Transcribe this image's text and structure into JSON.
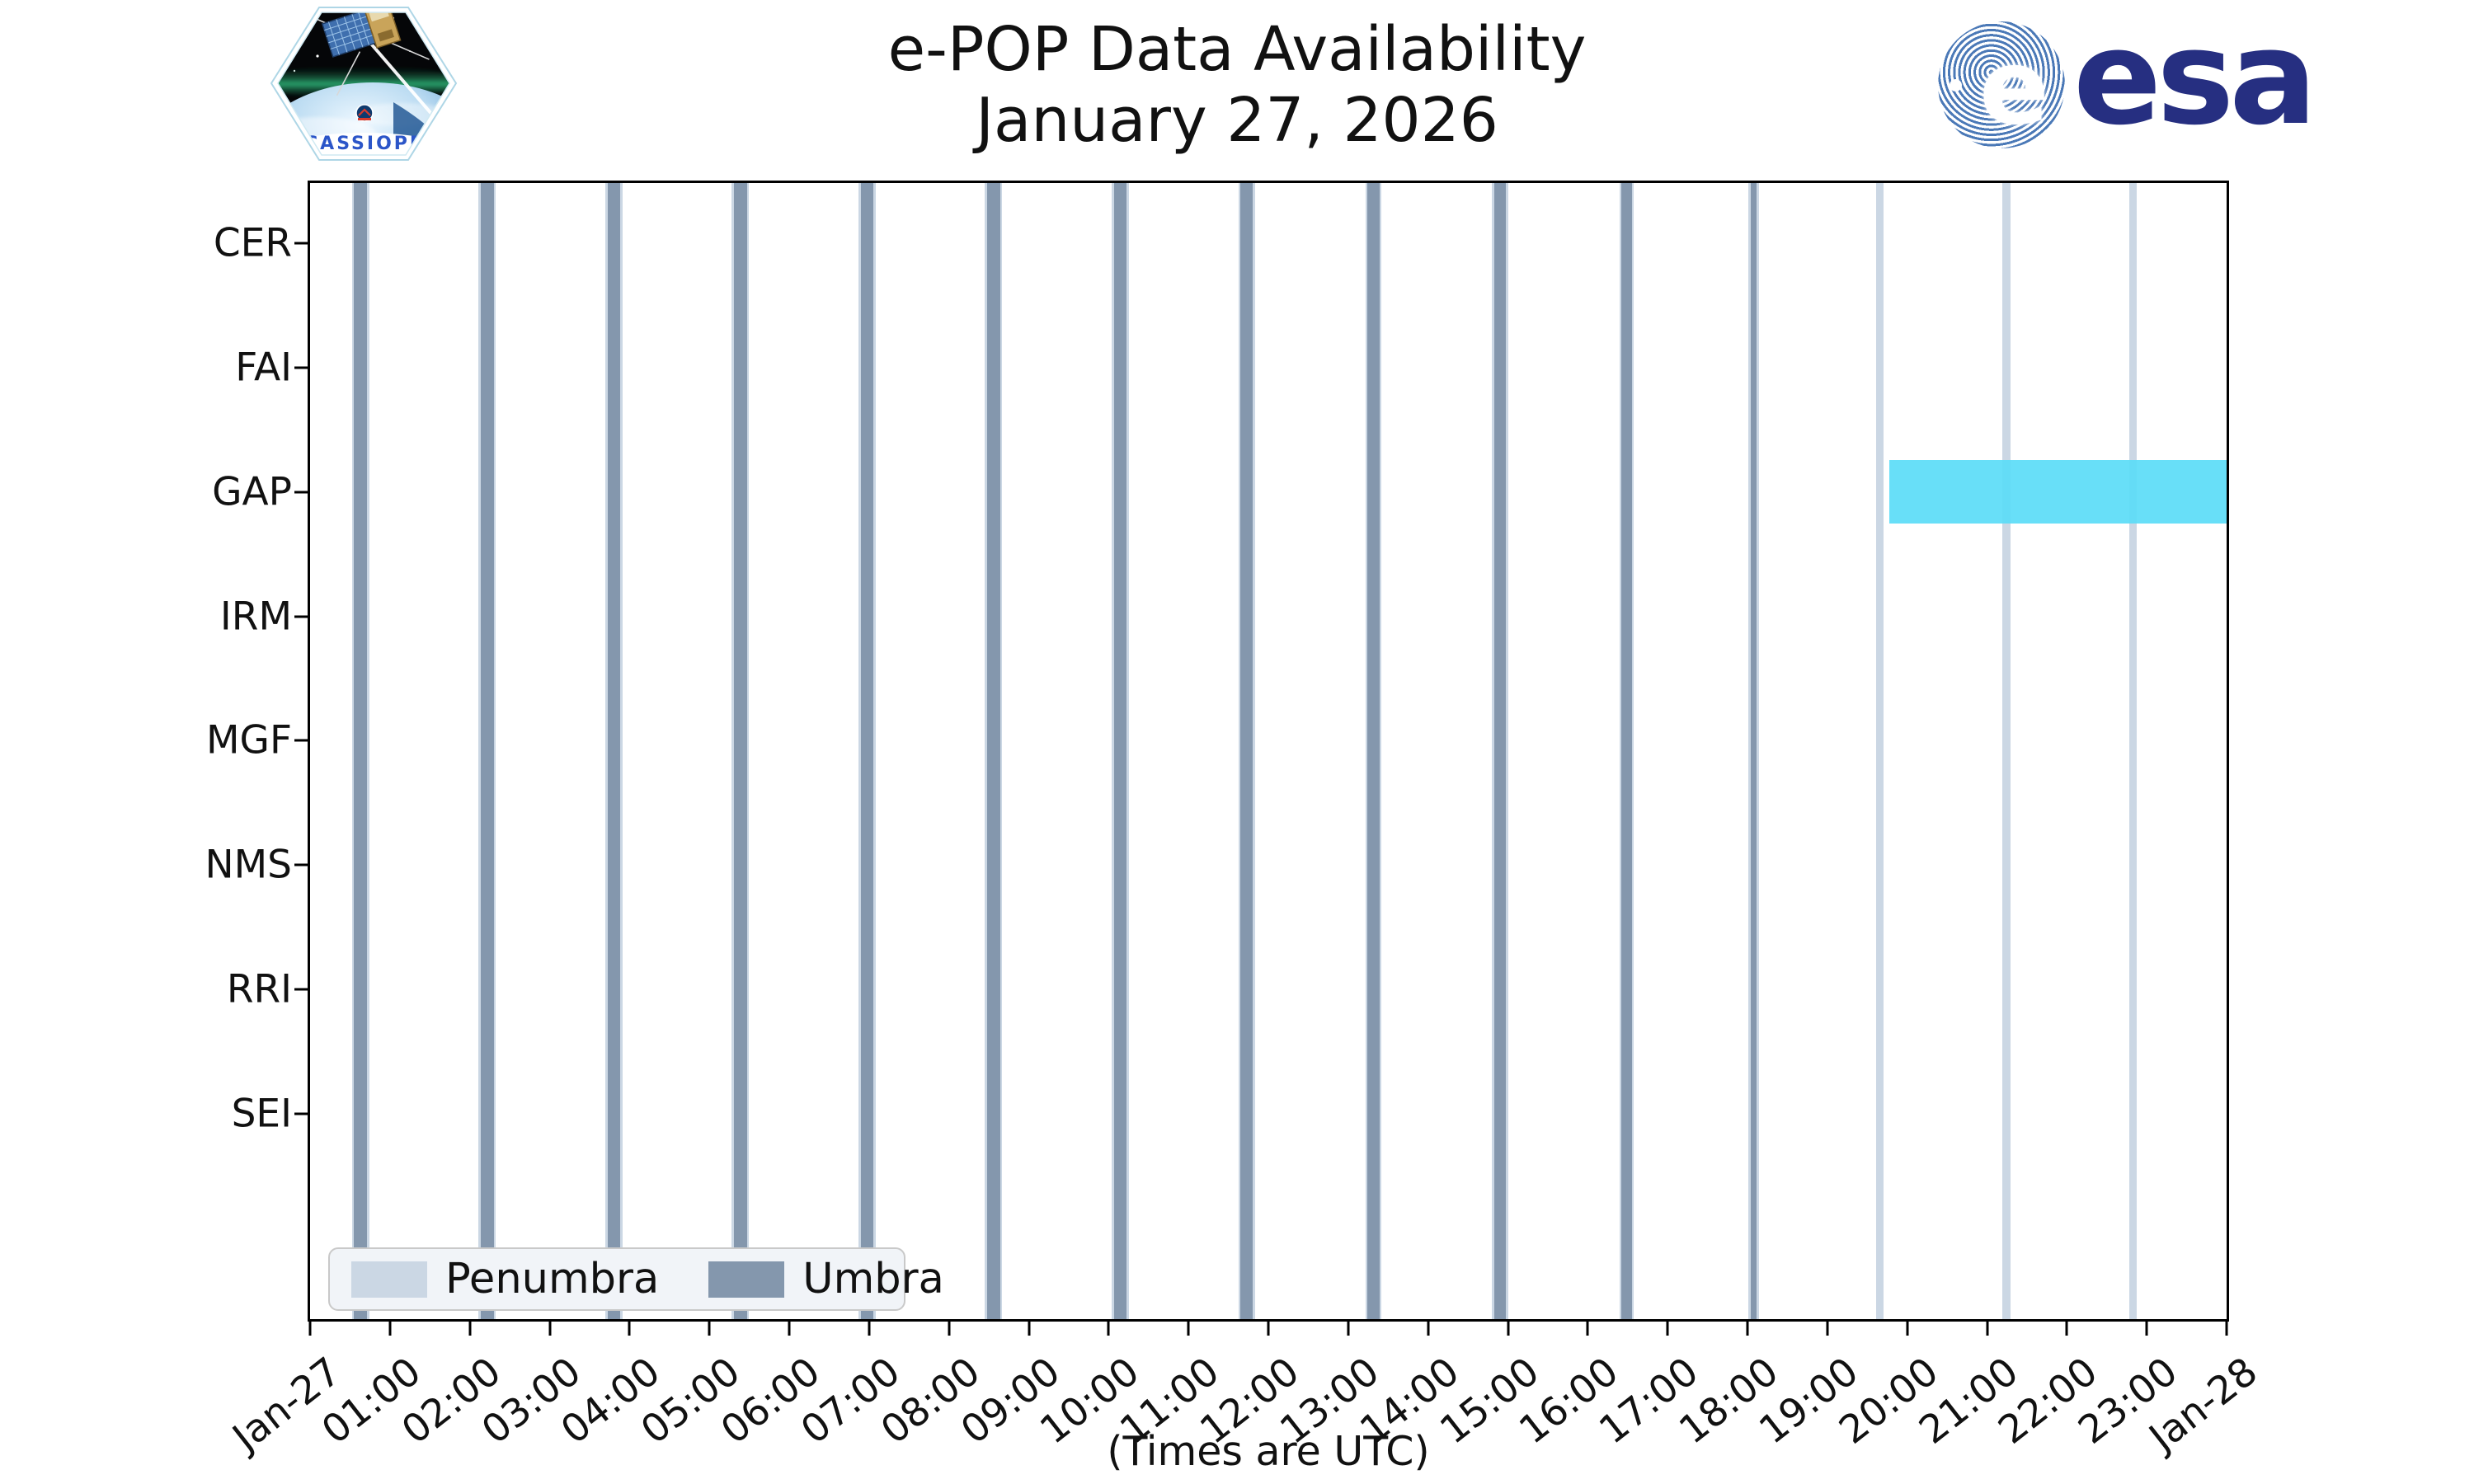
{
  "header": {
    "title_line1": "e-POP Data Availability",
    "title_line2": "January 27, 2026",
    "esa_wordmark": "esa",
    "esa_globe_letter": "e",
    "cassiope_patch_label": "CASSIOPE"
  },
  "footer": {
    "x_axis_note": "(Times are UTC)"
  },
  "chart_data": {
    "type": "gantt-availability",
    "title": "e-POP Data Availability",
    "subtitle": "January 27, 2026",
    "x_axis": {
      "label": "(Times are UTC)",
      "start": "Jan-27 00:00 UTC",
      "end": "Jan-28 00:00 UTC",
      "hours_span": 24,
      "tick_step_hours": 1,
      "tick_labels": [
        "Jan-27",
        "01:00",
        "02:00",
        "03:00",
        "04:00",
        "05:00",
        "06:00",
        "07:00",
        "08:00",
        "09:00",
        "10:00",
        "11:00",
        "12:00",
        "13:00",
        "14:00",
        "15:00",
        "16:00",
        "17:00",
        "18:00",
        "19:00",
        "20:00",
        "21:00",
        "22:00",
        "23:00",
        "Jan-28"
      ]
    },
    "instruments": [
      "CER",
      "FAI",
      "GAP",
      "IRM",
      "MGF",
      "NMS",
      "RRI",
      "SEI"
    ],
    "availability": [
      {
        "instrument": "GAP",
        "start_h": 19.78,
        "end_h": 24.0,
        "start": "19:47",
        "end": "24:00",
        "color": "#5bdcf7"
      }
    ],
    "eclipses": {
      "period_min": 95.1,
      "events": [
        {
          "time": "00:38",
          "center_h": 0.632,
          "umbra_h": 0.16,
          "penumbra_h": 0.215
        },
        {
          "time": "02:13",
          "center_h": 2.218,
          "umbra_h": 0.16,
          "penumbra_h": 0.215
        },
        {
          "time": "03:48",
          "center_h": 3.803,
          "umbra_h": 0.16,
          "penumbra_h": 0.215
        },
        {
          "time": "05:23",
          "center_h": 5.389,
          "umbra_h": 0.16,
          "penumbra_h": 0.215
        },
        {
          "time": "06:58",
          "center_h": 6.974,
          "umbra_h": 0.16,
          "penumbra_h": 0.215
        },
        {
          "time": "08:34",
          "center_h": 8.56,
          "umbra_h": 0.16,
          "penumbra_h": 0.215
        },
        {
          "time": "10:09",
          "center_h": 10.145,
          "umbra_h": 0.155,
          "penumbra_h": 0.21
        },
        {
          "time": "11:44",
          "center_h": 11.731,
          "umbra_h": 0.155,
          "penumbra_h": 0.21
        },
        {
          "time": "13:19",
          "center_h": 13.316,
          "umbra_h": 0.15,
          "penumbra_h": 0.205
        },
        {
          "time": "14:54",
          "center_h": 14.902,
          "umbra_h": 0.145,
          "penumbra_h": 0.2
        },
        {
          "time": "16:29",
          "center_h": 16.487,
          "umbra_h": 0.125,
          "penumbra_h": 0.18
        },
        {
          "time": "18:04",
          "center_h": 18.073,
          "umbra_h": 0.072,
          "penumbra_h": 0.135
        },
        {
          "time": "19:39",
          "center_h": 19.658,
          "umbra_h": 0.0,
          "penumbra_h": 0.1
        },
        {
          "time": "21:15",
          "center_h": 21.244,
          "umbra_h": 0.0,
          "penumbra_h": 0.1
        },
        {
          "time": "22:50",
          "center_h": 22.829,
          "umbra_h": 0.0,
          "penumbra_h": 0.1
        }
      ]
    },
    "legend": {
      "items": [
        {
          "label": "Penumbra",
          "color": "#cbd7e4"
        },
        {
          "label": "Umbra",
          "color": "#8497ad"
        }
      ],
      "position": "lower-left"
    },
    "colors": {
      "umbra": "#8497ad",
      "penumbra": "#cbd7e4",
      "gap_bar": "#5bdcf7",
      "axis": "#000000",
      "background": "#ffffff"
    },
    "grid": false
  }
}
